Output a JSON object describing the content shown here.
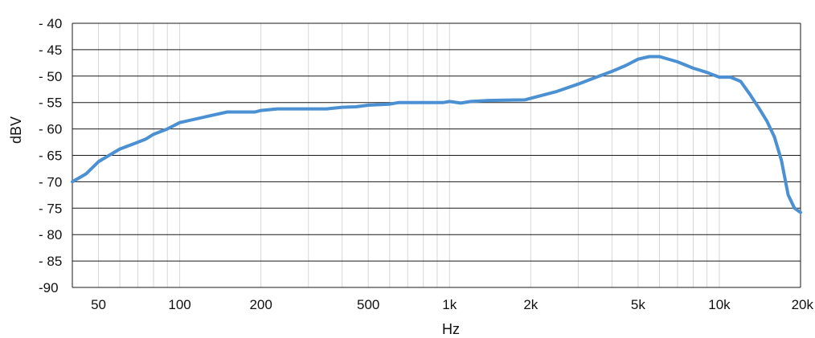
{
  "chart_data": {
    "type": "line",
    "title": "",
    "xlabel": "Hz",
    "ylabel": "dBV",
    "x_scale": "log",
    "xlim": [
      40,
      20000
    ],
    "ylim": [
      -90,
      -40
    ],
    "grid": true,
    "x_ticks": [
      {
        "value": 50,
        "label": "50"
      },
      {
        "value": 100,
        "label": "100"
      },
      {
        "value": 200,
        "label": "200"
      },
      {
        "value": 500,
        "label": "500"
      },
      {
        "value": 1000,
        "label": "1k"
      },
      {
        "value": 2000,
        "label": "2k"
      },
      {
        "value": 5000,
        "label": "5k"
      },
      {
        "value": 10000,
        "label": "10k"
      },
      {
        "value": 20000,
        "label": "20k"
      }
    ],
    "y_ticks": [
      {
        "value": -40,
        "label": "- 40"
      },
      {
        "value": -45,
        "label": "- 45"
      },
      {
        "value": -50,
        "label": "- 50"
      },
      {
        "value": -55,
        "label": "- 55"
      },
      {
        "value": -60,
        "label": "- 60"
      },
      {
        "value": -65,
        "label": "- 65"
      },
      {
        "value": -70,
        "label": "- 70"
      },
      {
        "value": -75,
        "label": "- 75"
      },
      {
        "value": -80,
        "label": "- 80"
      },
      {
        "value": -85,
        "label": "- 85"
      },
      {
        "value": -90,
        "label": "-90"
      }
    ],
    "line_color": "#4a90d2",
    "series": [
      {
        "values": [
          [
            40,
            -70
          ],
          [
            45,
            -68.5
          ],
          [
            50,
            -66.2
          ],
          [
            60,
            -63.8
          ],
          [
            70,
            -62.5
          ],
          [
            75,
            -61.9
          ],
          [
            80,
            -61.0
          ],
          [
            90,
            -60.0
          ],
          [
            100,
            -58.8
          ],
          [
            130,
            -57.5
          ],
          [
            150,
            -56.8
          ],
          [
            190,
            -56.8
          ],
          [
            200,
            -56.5
          ],
          [
            230,
            -56.2
          ],
          [
            350,
            -56.2
          ],
          [
            400,
            -55.9
          ],
          [
            450,
            -55.8
          ],
          [
            500,
            -55.5
          ],
          [
            600,
            -55.3
          ],
          [
            650,
            -55.0
          ],
          [
            950,
            -55.0
          ],
          [
            1000,
            -54.8
          ],
          [
            1100,
            -55.1
          ],
          [
            1200,
            -54.8
          ],
          [
            1400,
            -54.6
          ],
          [
            1900,
            -54.5
          ],
          [
            2000,
            -54.2
          ],
          [
            2500,
            -52.9
          ],
          [
            3000,
            -51.5
          ],
          [
            3500,
            -50.2
          ],
          [
            4000,
            -49.1
          ],
          [
            4500,
            -48.0
          ],
          [
            5000,
            -46.8
          ],
          [
            5500,
            -46.3
          ],
          [
            6000,
            -46.3
          ],
          [
            7000,
            -47.3
          ],
          [
            8000,
            -48.5
          ],
          [
            9000,
            -49.3
          ],
          [
            10000,
            -50.2
          ],
          [
            11000,
            -50.2
          ],
          [
            12000,
            -51.0
          ],
          [
            13000,
            -53.5
          ],
          [
            14000,
            -56.0
          ],
          [
            15000,
            -58.5
          ],
          [
            16000,
            -61.5
          ],
          [
            17000,
            -66.0
          ],
          [
            18000,
            -72.5
          ],
          [
            19000,
            -75.0
          ],
          [
            20000,
            -75.8
          ]
        ]
      }
    ]
  }
}
